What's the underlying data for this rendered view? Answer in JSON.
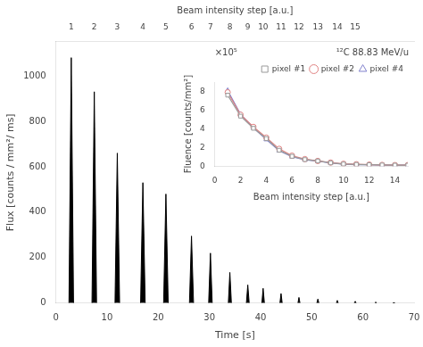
{
  "chart_data": [
    {
      "type": "area",
      "xlabel": "Time [s]",
      "ylabel": "Flux [counts / mm²/ ms]",
      "x2label": "Beam intensity step [a.u.]",
      "xlim": [
        0,
        70
      ],
      "ylim": [
        0,
        1150
      ],
      "x2lim": [
        0,
        70
      ],
      "xticks": [
        0,
        10,
        20,
        30,
        40,
        50,
        60,
        70
      ],
      "yticks": [
        0,
        200,
        400,
        600,
        800,
        1000
      ],
      "x2ticks": [
        {
          "value": 3.0,
          "label": "1"
        },
        {
          "value": 7.5,
          "label": "2"
        },
        {
          "value": 12.0,
          "label": "3"
        },
        {
          "value": 17.0,
          "label": "4"
        },
        {
          "value": 21.5,
          "label": "5"
        },
        {
          "value": 26.5,
          "label": "6"
        },
        {
          "value": 30.2,
          "label": "7"
        },
        {
          "value": 34.0,
          "label": "8"
        },
        {
          "value": 37.5,
          "label": "9"
        },
        {
          "value": 40.5,
          "label": "10"
        },
        {
          "value": 44.0,
          "label": "11"
        },
        {
          "value": 47.5,
          "label": "12"
        },
        {
          "value": 51.2,
          "label": "13"
        },
        {
          "value": 55.0,
          "label": "14"
        },
        {
          "value": 58.5,
          "label": "15"
        }
      ],
      "x": [
        3.0,
        7.5,
        12.0,
        17.0,
        21.5,
        26.5,
        30.2,
        34.0,
        37.5,
        40.5,
        44.0,
        47.5,
        51.2,
        55.0,
        58.5,
        62.5,
        66.0
      ],
      "values": [
        1080,
        930,
        660,
        530,
        480,
        295,
        220,
        135,
        80,
        65,
        42,
        25,
        18,
        12,
        8,
        5,
        3
      ],
      "widths": [
        0.9,
        0.9,
        0.9,
        0.9,
        0.9,
        0.8,
        0.7,
        0.6,
        0.55,
        0.5,
        0.45,
        0.4,
        0.4,
        0.35,
        0.35,
        0.3,
        0.3
      ],
      "color": "#000000",
      "grid": false
    },
    {
      "type": "line",
      "title": "¹²C 88.83 MeV/u",
      "annotation": "×10⁵",
      "xlabel": "Beam intensity step [a.u.]",
      "ylabel": "Fluence [counts/mm²]",
      "xlim": [
        0,
        15
      ],
      "ylim": [
        0,
        9
      ],
      "xticks": [
        0,
        2,
        4,
        6,
        8,
        10,
        12,
        14
      ],
      "yticks": [
        0,
        2,
        4,
        6,
        8
      ],
      "x": [
        1,
        2,
        3,
        4,
        5,
        6,
        7,
        8,
        9,
        10,
        11,
        12,
        13,
        14,
        15
      ],
      "series": [
        {
          "name": "pixel #1",
          "color": "#999999",
          "marker": "square",
          "values": [
            7.6,
            5.35,
            4.05,
            2.95,
            1.7,
            1.05,
            0.7,
            0.55,
            0.35,
            0.22,
            0.18,
            0.15,
            0.12,
            0.1,
            0.1
          ]
        },
        {
          "name": "pixel #2",
          "color": "#e08080",
          "marker": "circle",
          "values": [
            7.9,
            5.5,
            4.2,
            3.05,
            1.85,
            1.12,
            0.75,
            0.55,
            0.38,
            0.25,
            0.2,
            0.16,
            0.13,
            0.11,
            0.11
          ]
        },
        {
          "name": "pixel #4",
          "color": "#8080cc",
          "marker": "triangle",
          "values": [
            8.1,
            5.55,
            4.1,
            2.85,
            1.65,
            1.0,
            0.68,
            0.52,
            0.34,
            0.2,
            0.16,
            0.14,
            0.11,
            0.1,
            0.1
          ]
        }
      ],
      "legend": "upper right",
      "grid": false
    }
  ]
}
